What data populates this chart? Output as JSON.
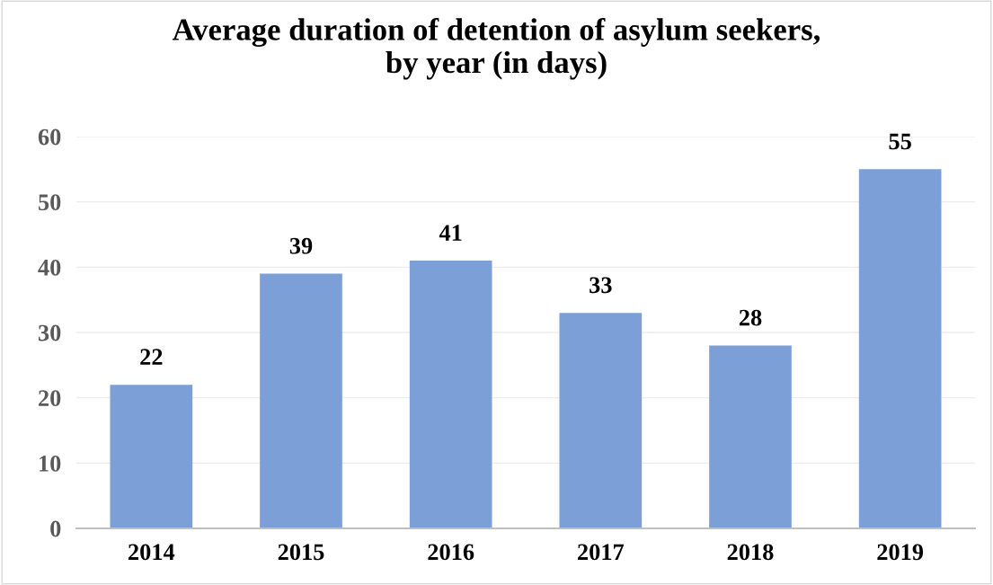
{
  "chart_data": {
    "type": "bar",
    "title": "Average duration of detention of asylum seekers,\nby year (in days)",
    "categories": [
      "2014",
      "2015",
      "2016",
      "2017",
      "2018",
      "2019"
    ],
    "values": [
      22,
      39,
      41,
      33,
      28,
      55
    ],
    "color": "#7b9fd6",
    "ylim": [
      0,
      60
    ],
    "yticks": [
      0,
      10,
      20,
      30,
      40,
      50,
      60
    ],
    "grid": "y",
    "data_labels": true,
    "legend": false
  }
}
